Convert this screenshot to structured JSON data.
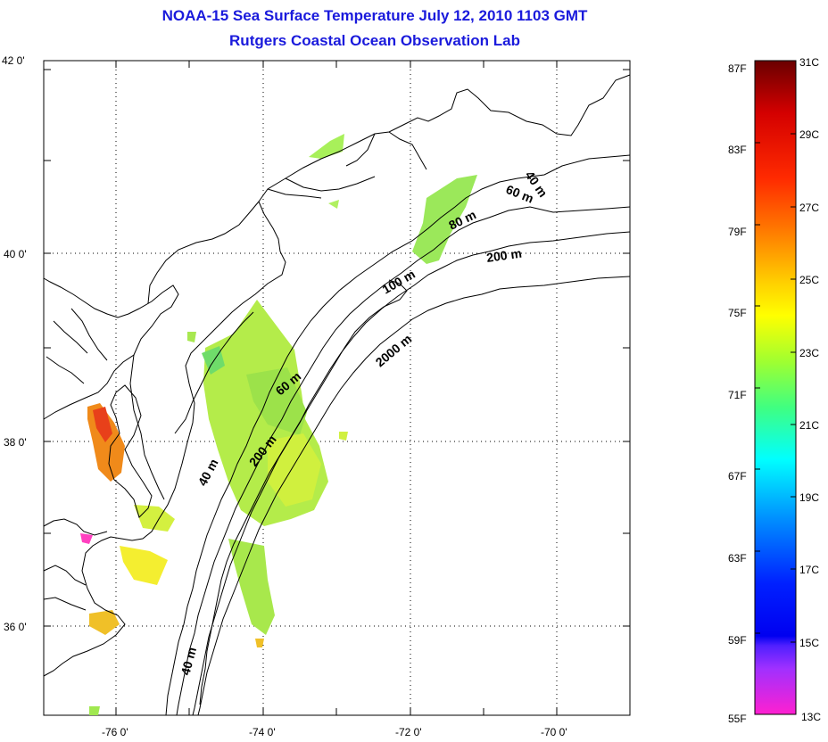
{
  "title": {
    "line1": "NOAA-15 Sea Surface Temperature July 12, 2010 1103 GMT",
    "line2": "Rutgers Coastal Ocean Observation Lab"
  },
  "map": {
    "lat_labels": [
      "42 0'",
      "40 0'",
      "38 0'",
      "36 0'"
    ],
    "lon_labels": [
      "-76 0'",
      "-74 0'",
      "-72 0'",
      "-70 0'"
    ],
    "contour_labels": [
      "40 m",
      "60 m",
      "80 m",
      "200 m",
      "100 m",
      "2000 m",
      "60 m",
      "200 m",
      "40 m",
      "40 m"
    ]
  },
  "colorbar": {
    "fahrenheit_labels": [
      "87F",
      "83F",
      "79F",
      "75F",
      "71F",
      "67F",
      "63F",
      "59F",
      "55F"
    ],
    "celsius_labels": [
      "31C",
      "29C",
      "27C",
      "25C",
      "23C",
      "21C",
      "19C",
      "17C",
      "15C",
      "13C"
    ],
    "colors": [
      "#7a0000",
      "#e00000",
      "#ff7a00",
      "#ffff00",
      "#7cff3a",
      "#00ffff",
      "#1890ff",
      "#0000ff",
      "#9a2aff",
      "#ff28c8"
    ]
  }
}
